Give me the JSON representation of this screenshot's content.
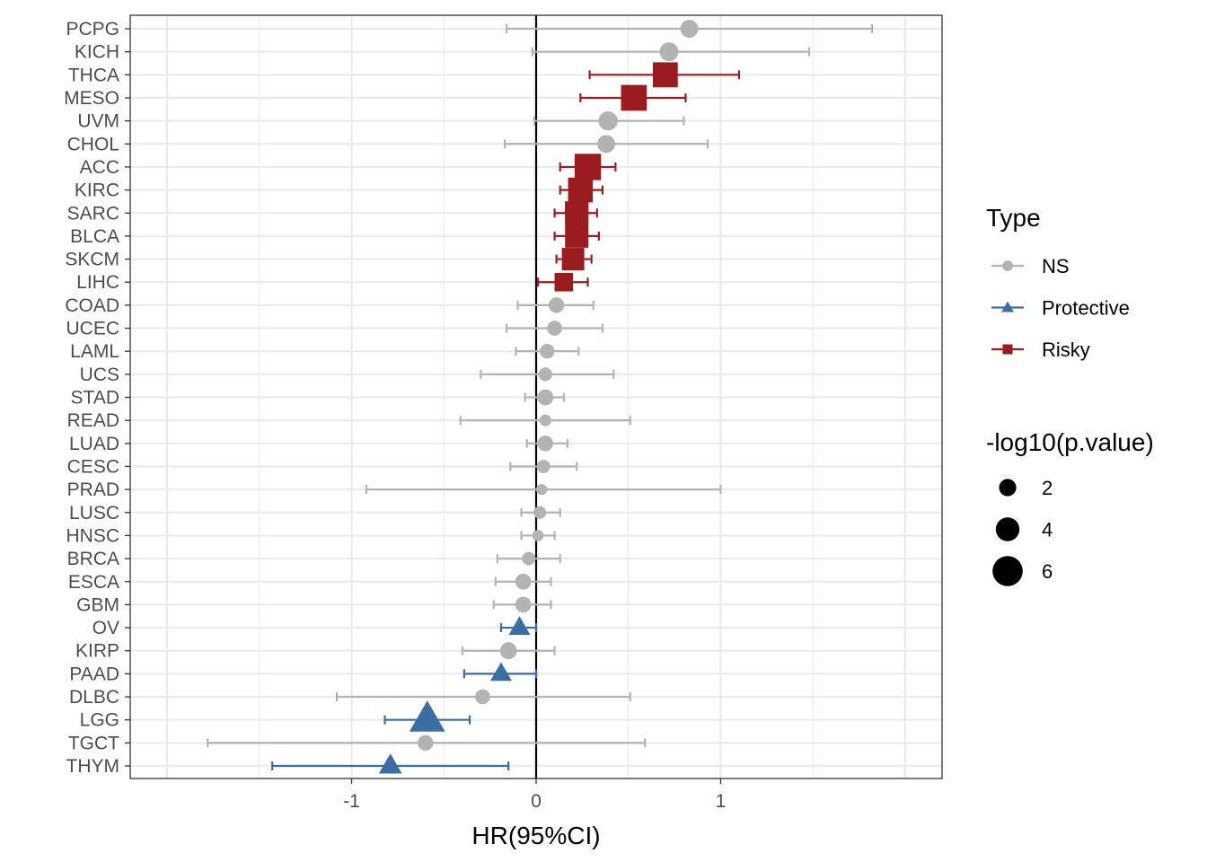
{
  "chart_data": {
    "type": "scatter",
    "title": "",
    "xlabel": "HR(95%CI)",
    "ylabel": "",
    "xlim": [
      -2.2,
      2.2
    ],
    "x_ticks": [
      -1,
      0,
      1
    ],
    "x_tick_labels": [
      "-1",
      "0",
      "1"
    ],
    "reference_line_x": 0,
    "grid": true,
    "legend_position": "right",
    "colors": {
      "NS": "#b3b3b3",
      "Protective": "#3a6ea5",
      "Risky": "#9b1c1f"
    },
    "legend_type": {
      "title": "Type",
      "entries": [
        {
          "label": "NS",
          "shape": "circle",
          "color": "#b3b3b3"
        },
        {
          "label": "Protective",
          "shape": "triangle",
          "color": "#3a6ea5"
        },
        {
          "label": "Risky",
          "shape": "square",
          "color": "#9b1c1f"
        }
      ]
    },
    "legend_size": {
      "title": "-log10(p.value)",
      "entries": [
        {
          "label": "2",
          "value": 2
        },
        {
          "label": "4",
          "value": 4
        },
        {
          "label": "6",
          "value": 6
        }
      ]
    },
    "categories": [
      "PCPG",
      "KICH",
      "THCA",
      "MESO",
      "UVM",
      "CHOL",
      "ACC",
      "KIRC",
      "SARC",
      "BLCA",
      "SKCM",
      "LIHC",
      "COAD",
      "UCEC",
      "LAML",
      "UCS",
      "STAD",
      "READ",
      "LUAD",
      "CESC",
      "PRAD",
      "LUSC",
      "HNSC",
      "BRCA",
      "ESCA",
      "GBM",
      "OV",
      "KIRP",
      "PAAD",
      "DLBC",
      "LGG",
      "TGCT",
      "THYM"
    ],
    "points": [
      {
        "name": "PCPG",
        "hr": 0.83,
        "lower": -0.16,
        "upper": 1.82,
        "type": "NS",
        "neglog10p": 2.2
      },
      {
        "name": "KICH",
        "hr": 0.72,
        "lower": -0.02,
        "upper": 1.48,
        "type": "NS",
        "neglog10p": 2.5
      },
      {
        "name": "THCA",
        "hr": 0.7,
        "lower": 0.29,
        "upper": 1.1,
        "type": "Risky",
        "neglog10p": 5.5
      },
      {
        "name": "MESO",
        "hr": 0.53,
        "lower": 0.24,
        "upper": 0.81,
        "type": "Risky",
        "neglog10p": 5.8
      },
      {
        "name": "UVM",
        "hr": 0.39,
        "lower": -0.01,
        "upper": 0.8,
        "type": "NS",
        "neglog10p": 2.6
      },
      {
        "name": "CHOL",
        "hr": 0.38,
        "lower": -0.17,
        "upper": 0.93,
        "type": "NS",
        "neglog10p": 2.2
      },
      {
        "name": "ACC",
        "hr": 0.28,
        "lower": 0.13,
        "upper": 0.43,
        "type": "Risky",
        "neglog10p": 6.0
      },
      {
        "name": "KIRC",
        "hr": 0.24,
        "lower": 0.13,
        "upper": 0.36,
        "type": "Risky",
        "neglog10p": 5.4
      },
      {
        "name": "SARC",
        "hr": 0.22,
        "lower": 0.1,
        "upper": 0.33,
        "type": "Risky",
        "neglog10p": 5.0
      },
      {
        "name": "BLCA",
        "hr": 0.22,
        "lower": 0.1,
        "upper": 0.34,
        "type": "Risky",
        "neglog10p": 4.9
      },
      {
        "name": "SKCM",
        "hr": 0.2,
        "lower": 0.11,
        "upper": 0.3,
        "type": "Risky",
        "neglog10p": 4.6
      },
      {
        "name": "LIHC",
        "hr": 0.15,
        "lower": 0.01,
        "upper": 0.28,
        "type": "Risky",
        "neglog10p": 3.2
      },
      {
        "name": "COAD",
        "hr": 0.11,
        "lower": -0.1,
        "upper": 0.31,
        "type": "NS",
        "neglog10p": 1.5
      },
      {
        "name": "UCEC",
        "hr": 0.1,
        "lower": -0.16,
        "upper": 0.36,
        "type": "NS",
        "neglog10p": 1.3
      },
      {
        "name": "LAML",
        "hr": 0.06,
        "lower": -0.11,
        "upper": 0.23,
        "type": "NS",
        "neglog10p": 1.2
      },
      {
        "name": "UCS",
        "hr": 0.05,
        "lower": -0.3,
        "upper": 0.42,
        "type": "NS",
        "neglog10p": 0.9
      },
      {
        "name": "STAD",
        "hr": 0.05,
        "lower": -0.06,
        "upper": 0.15,
        "type": "NS",
        "neglog10p": 1.6
      },
      {
        "name": "READ",
        "hr": 0.05,
        "lower": -0.41,
        "upper": 0.51,
        "type": "NS",
        "neglog10p": 0.3
      },
      {
        "name": "LUAD",
        "hr": 0.05,
        "lower": -0.05,
        "upper": 0.17,
        "type": "NS",
        "neglog10p": 1.5
      },
      {
        "name": "CESC",
        "hr": 0.04,
        "lower": -0.14,
        "upper": 0.22,
        "type": "NS",
        "neglog10p": 0.8
      },
      {
        "name": "PRAD",
        "hr": 0.03,
        "lower": -0.92,
        "upper": 1.0,
        "type": "NS",
        "neglog10p": 0.1
      },
      {
        "name": "LUSC",
        "hr": 0.02,
        "lower": -0.08,
        "upper": 0.13,
        "type": "NS",
        "neglog10p": 0.6
      },
      {
        "name": "HNSC",
        "hr": 0.01,
        "lower": -0.08,
        "upper": 0.1,
        "type": "NS",
        "neglog10p": 0.2
      },
      {
        "name": "BRCA",
        "hr": -0.04,
        "lower": -0.21,
        "upper": 0.13,
        "type": "NS",
        "neglog10p": 0.8
      },
      {
        "name": "ESCA",
        "hr": -0.07,
        "lower": -0.22,
        "upper": 0.08,
        "type": "NS",
        "neglog10p": 1.6
      },
      {
        "name": "GBM",
        "hr": -0.07,
        "lower": -0.23,
        "upper": 0.08,
        "type": "NS",
        "neglog10p": 1.6
      },
      {
        "name": "OV",
        "hr": -0.09,
        "lower": -0.19,
        "upper": 0.0,
        "type": "Protective",
        "neglog10p": 3.0
      },
      {
        "name": "KIRP",
        "hr": -0.15,
        "lower": -0.4,
        "upper": 0.1,
        "type": "NS",
        "neglog10p": 1.9
      },
      {
        "name": "PAAD",
        "hr": -0.19,
        "lower": -0.39,
        "upper": 0.0,
        "type": "Protective",
        "neglog10p": 3.0
      },
      {
        "name": "DLBC",
        "hr": -0.29,
        "lower": -1.08,
        "upper": 0.51,
        "type": "NS",
        "neglog10p": 1.3
      },
      {
        "name": "LGG",
        "hr": -0.59,
        "lower": -0.82,
        "upper": -0.36,
        "type": "Protective",
        "neglog10p": 7.2
      },
      {
        "name": "TGCT",
        "hr": -0.6,
        "lower": -1.78,
        "upper": 0.59,
        "type": "NS",
        "neglog10p": 1.5
      },
      {
        "name": "THYM",
        "hr": -0.79,
        "lower": -1.43,
        "upper": -0.15,
        "type": "Protective",
        "neglog10p": 3.5
      }
    ]
  }
}
